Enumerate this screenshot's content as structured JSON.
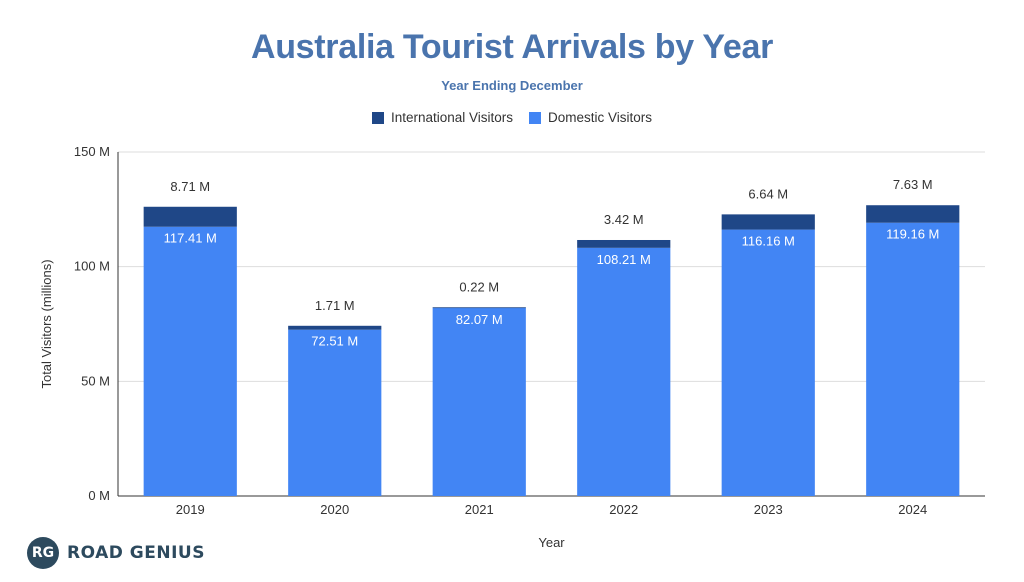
{
  "chart_data": {
    "type": "bar",
    "stacked": true,
    "title": "Australia Tourist Arrivals by Year",
    "subtitle": "Year Ending December",
    "xlabel": "Year",
    "ylabel": "Total Visitors (millions)",
    "ylim": [
      0,
      150
    ],
    "yticks": [
      {
        "value": 0,
        "label": "0 M"
      },
      {
        "value": 50,
        "label": "50 M"
      },
      {
        "value": 100,
        "label": "100 M"
      },
      {
        "value": 150,
        "label": "150 M"
      }
    ],
    "grid": true,
    "legend_position": "top-center",
    "categories": [
      "2019",
      "2020",
      "2021",
      "2022",
      "2023",
      "2024"
    ],
    "series": [
      {
        "name": "Domestic Visitors",
        "color": "#4285f4",
        "values": [
          117.41,
          72.51,
          82.07,
          108.21,
          116.16,
          119.16
        ],
        "labels": [
          "117.41 M",
          "72.51 M",
          "82.07 M",
          "108.21 M",
          "116.16 M",
          "119.16 M"
        ]
      },
      {
        "name": "International Visitors",
        "color": "#1f4787",
        "values": [
          8.71,
          1.71,
          0.22,
          3.42,
          6.64,
          7.63
        ],
        "labels": [
          "8.71 M",
          "1.71 M",
          "0.22 M",
          "3.42 M",
          "6.64 M",
          "7.63 M"
        ]
      }
    ],
    "legend_order": [
      "International Visitors",
      "Domestic Visitors"
    ]
  },
  "brand": {
    "badge": "RG",
    "name": "ROAD GENIUS"
  }
}
